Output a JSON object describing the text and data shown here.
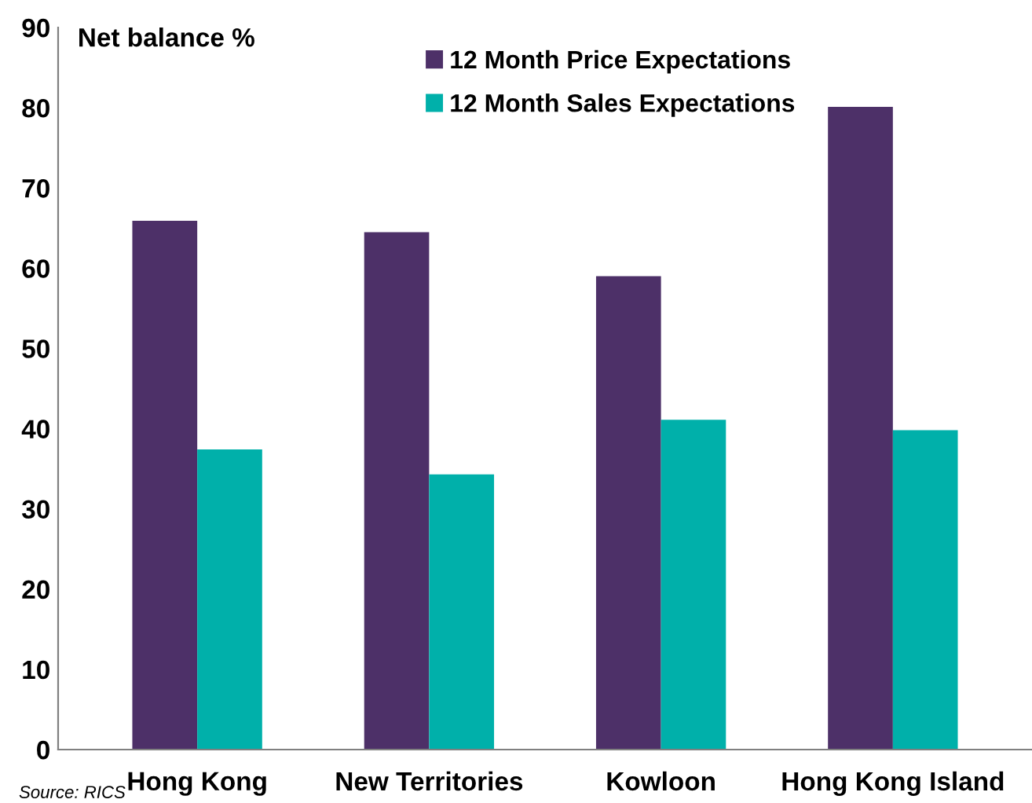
{
  "chart_data": {
    "type": "bar",
    "ylabel": "Net balance %",
    "categories": [
      "Hong Kong",
      "New Territories",
      "Kowloon",
      "Hong Kong Island"
    ],
    "series": [
      {
        "name": "12 Month Price Expectations",
        "color": "#4d3068",
        "values": [
          65.9,
          64.5,
          59.0,
          80.1
        ]
      },
      {
        "name": "12 Month Sales Expectations",
        "color": "#00b0aa",
        "values": [
          37.4,
          34.3,
          41.1,
          39.8
        ]
      }
    ],
    "ylim": [
      0,
      90
    ],
    "yticks": [
      0,
      10,
      20,
      30,
      40,
      50,
      60,
      70,
      80,
      90
    ],
    "grid": false,
    "legend": "top right",
    "annotations": [
      "Source: RICS"
    ]
  }
}
